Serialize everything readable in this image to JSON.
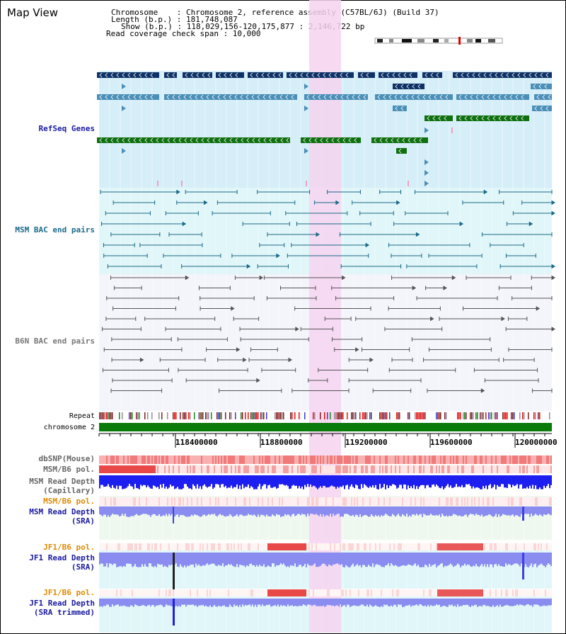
{
  "title": "Map View",
  "info": {
    "chromosome": "Chromosome    : Chromosome 2, reference assembly (C57BL/6J) (Build 37)",
    "length": "Length (b.p.) : 181,748,087",
    "show": "Show (b.p.) : 118,029,156-120,175,877 : 2,146,722 bp",
    "coverage": "Read coverage check span : 10,000"
  },
  "tracks": {
    "refseq": "RefSeq Genes",
    "msm_bac": "MSM BAC end pairs",
    "b6n_bac": "B6N BAC end pairs",
    "repeat": "Repeat",
    "chrom": "chromosome 2",
    "dbsnp": "dbSNP(Mouse)",
    "msm_b6_pol_1": "MSM/B6 pol.",
    "msm_depth_cap_1": "MSM Read Depth",
    "msm_depth_cap_2": "(Capillary)",
    "msm_b6_pol_2": "MSM/B6 pol.",
    "msm_depth_sra_1": "MSM Read Depth",
    "msm_depth_sra_2": "(SRA)",
    "jf1_pol_1": "JF1/B6 pol.",
    "jf1_depth_sra_1": "JF1 Read Depth",
    "jf1_depth_sra_2": "(SRA)",
    "jf1_pol_2": "JF1/B6 pol.",
    "jf1_depth_trim_1": "JF1 Read Depth",
    "jf1_depth_trim_2": "(SRA trimmed)"
  },
  "ruler": [
    "118400000",
    "118800000",
    "119200000",
    "119600000",
    "120000000"
  ],
  "colors": {
    "refseq_bg": "#d6eef8",
    "msm_bg": "#e0f6f8",
    "b6n_bg": "#f4f4fb",
    "highlight": "#f6d3f0",
    "gene_navy": "#0f3266",
    "gene_blue": "#4b8fb8",
    "gene_green": "#107010",
    "msm_line": "#1a6a8a",
    "b6n_line": "#555555",
    "chrom_bar": "#0a7a0a",
    "depth_blue": "#1d1ef0",
    "depth_light": "#8a8cf0"
  }
}
